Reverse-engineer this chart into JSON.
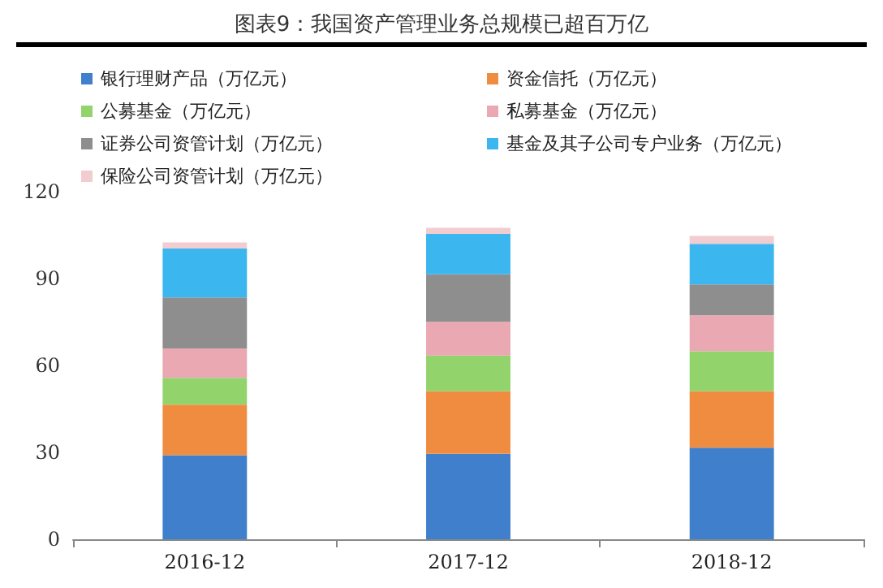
{
  "chart_data": {
    "type": "bar",
    "title": "图表9：我国资产管理业务总规模已超百万亿",
    "categories": [
      "2016-12",
      "2017-12",
      "2018-12"
    ],
    "stacked": true,
    "series": [
      {
        "name": "银行理财产品（万亿元）",
        "color": "#3f7fcb",
        "values": [
          29,
          29.5,
          31.6
        ]
      },
      {
        "name": "资金信托（万亿元）",
        "color": "#f08c40",
        "values": [
          17.5,
          21.6,
          19.5
        ]
      },
      {
        "name": "公募基金（万亿元）",
        "color": "#93d36c",
        "values": [
          9.2,
          12.3,
          13.8
        ]
      },
      {
        "name": "私募基金（万亿元）",
        "color": "#e9a8b2",
        "values": [
          10.2,
          11.7,
          12.4
        ]
      },
      {
        "name": "证券公司资管计划（万亿元）",
        "color": "#8e8e8e",
        "values": [
          17.6,
          16.4,
          10.7
        ]
      },
      {
        "name": "基金及其子公司专户业务（万亿元）",
        "color": "#3cb6ef",
        "values": [
          16.9,
          13.9,
          14
        ]
      },
      {
        "name": "保险公司资管计划（万亿元）",
        "color": "#f1ccd0",
        "values": [
          2.1,
          2.1,
          2.7
        ]
      }
    ],
    "ylim": [
      0,
      120
    ],
    "yticks": [
      0,
      30,
      60,
      90,
      120
    ],
    "grid": false,
    "legend": "top"
  }
}
